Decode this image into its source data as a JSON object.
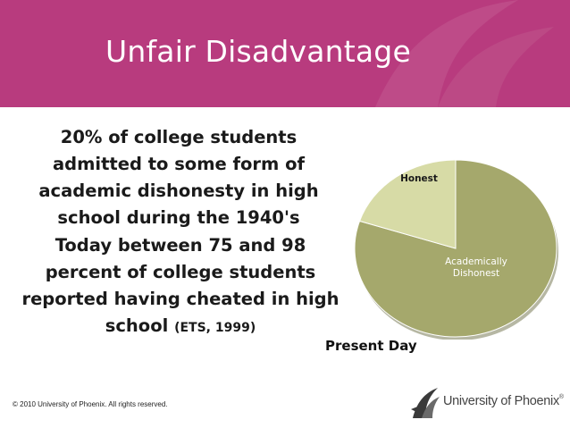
{
  "slide": {
    "title": "Unfair Disadvantage",
    "para1": "20% of college students admitted to some form of academic dishonesty in high school during the 1940's",
    "para2_main": "Today between 75 and 98 percent of college students reported having cheated in high school",
    "para2_cite": "(ETS, 1999)",
    "copyright": "© 2010 University of Phoenix. All rights reserved.",
    "logo_text": "University of Phoenix",
    "logo_reg": "®"
  },
  "chart_data": {
    "type": "pie",
    "title": "Present Day",
    "categories": [
      "Honest",
      "Academically Dishonest"
    ],
    "values": [
      20,
      80
    ],
    "colors": [
      "#d7dba6",
      "#a5a86c"
    ]
  }
}
